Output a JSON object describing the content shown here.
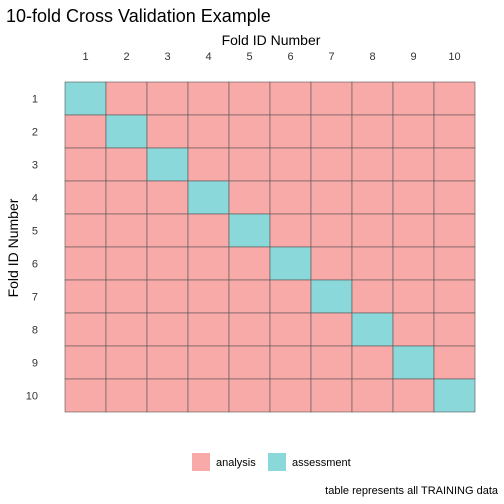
{
  "chart_data": {
    "type": "heatmap",
    "title": "10-fold Cross Validation Example",
    "xlabel": "Fold ID Number",
    "ylabel": "Fold ID Number",
    "x_categories": [
      "1",
      "2",
      "3",
      "4",
      "5",
      "6",
      "7",
      "8",
      "9",
      "10"
    ],
    "y_categories": [
      "1",
      "2",
      "3",
      "4",
      "5",
      "6",
      "7",
      "8",
      "9",
      "10"
    ],
    "x_axis_position": "top",
    "legend": {
      "position": "bottom",
      "entries": [
        {
          "label": "analysis",
          "color": "#F8AAA8"
        },
        {
          "label": "assessment",
          "color": "#8AD8DA"
        }
      ]
    },
    "cells": [
      [
        "assessment",
        "analysis",
        "analysis",
        "analysis",
        "analysis",
        "analysis",
        "analysis",
        "analysis",
        "analysis",
        "analysis"
      ],
      [
        "analysis",
        "assessment",
        "analysis",
        "analysis",
        "analysis",
        "analysis",
        "analysis",
        "analysis",
        "analysis",
        "analysis"
      ],
      [
        "analysis",
        "analysis",
        "assessment",
        "analysis",
        "analysis",
        "analysis",
        "analysis",
        "analysis",
        "analysis",
        "analysis"
      ],
      [
        "analysis",
        "analysis",
        "analysis",
        "assessment",
        "analysis",
        "analysis",
        "analysis",
        "analysis",
        "analysis",
        "analysis"
      ],
      [
        "analysis",
        "analysis",
        "analysis",
        "analysis",
        "assessment",
        "analysis",
        "analysis",
        "analysis",
        "analysis",
        "analysis"
      ],
      [
        "analysis",
        "analysis",
        "analysis",
        "analysis",
        "analysis",
        "assessment",
        "analysis",
        "analysis",
        "analysis",
        "analysis"
      ],
      [
        "analysis",
        "analysis",
        "analysis",
        "analysis",
        "analysis",
        "analysis",
        "assessment",
        "analysis",
        "analysis",
        "analysis"
      ],
      [
        "analysis",
        "analysis",
        "analysis",
        "analysis",
        "analysis",
        "analysis",
        "analysis",
        "assessment",
        "analysis",
        "analysis"
      ],
      [
        "analysis",
        "analysis",
        "analysis",
        "analysis",
        "analysis",
        "analysis",
        "analysis",
        "analysis",
        "assessment",
        "analysis"
      ],
      [
        "analysis",
        "analysis",
        "analysis",
        "analysis",
        "analysis",
        "analysis",
        "analysis",
        "analysis",
        "analysis",
        "assessment"
      ]
    ],
    "grid": false,
    "caption": "table represents all TRAINING data"
  },
  "colors": {
    "analysis": "#F8AAA8",
    "assessment": "#8AD8DA",
    "cell_border": "#555555"
  }
}
